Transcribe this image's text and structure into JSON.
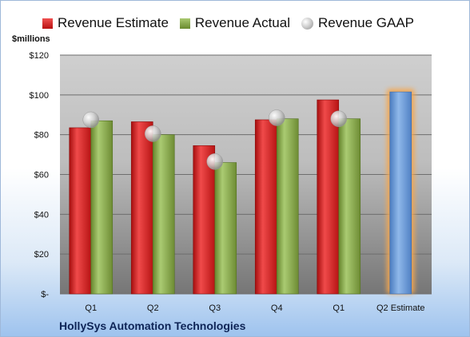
{
  "legend": {
    "estimate": "Revenue Estimate",
    "actual": "Revenue Actual",
    "gaap": "Revenue GAAP"
  },
  "unit_label": "$millions",
  "company": "HollySys Automation Technologies",
  "colors": {
    "estimate": "#d42a2a",
    "actual": "#8aac52",
    "gaap": "#c8c8c8",
    "estimate_projection": "#6fa0dc",
    "projection_glow": "#f5a750"
  },
  "chart_data": {
    "type": "bar",
    "categories": [
      "Q1",
      "Q2",
      "Q3",
      "Q4",
      "Q1",
      "Q2 Estimate"
    ],
    "ylim": [
      0,
      120
    ],
    "yticks": [
      0,
      20,
      40,
      60,
      80,
      100,
      120
    ],
    "ytick_labels": [
      "$-",
      "$20",
      "$40",
      "$60",
      "$80",
      "$100",
      "$120"
    ],
    "grid": true,
    "legend_position": "top",
    "series": [
      {
        "name": "Revenue Estimate",
        "values": [
          83.5,
          86.5,
          74.5,
          87.5,
          97.5,
          101.5
        ]
      },
      {
        "name": "Revenue Actual",
        "values": [
          87,
          80,
          66,
          88,
          88,
          null
        ]
      },
      {
        "name": "Revenue GAAP",
        "values": [
          87.5,
          80.5,
          66.5,
          88.5,
          88,
          null
        ]
      }
    ]
  }
}
